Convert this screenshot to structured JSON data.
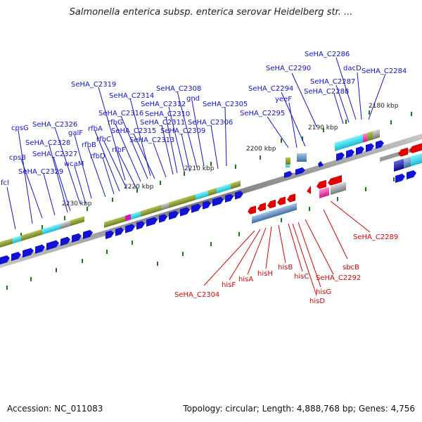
{
  "title": "Salmonella enterica subsp. enterica serovar Heidelberg str. ...",
  "accession": "Accession: NC_011083",
  "summary": "Topology: circular; Length: 4,888,768 bp; Genes: 4,756",
  "scale_labels": [
    "2180 kbp",
    "2190 kbp",
    "2200 kbp",
    "2210 kbp",
    "2220 kbp",
    "2230 kbp"
  ],
  "forward_genes": [
    "SeHA_C2286",
    "dacD",
    "SeHA_C2284",
    "SeHA_C2290",
    "SeHA_C2287",
    "SeHA_C2288",
    "SeHA_C2294",
    "yeeF",
    "SeHA_C2295",
    "SeHA_C2319",
    "SeHA_C2308",
    "SeHA_C2314",
    "gnd",
    "SeHA_C2312",
    "SeHA_C2305",
    "SeHA_C2316",
    "SeHA_C2310",
    "rfbG",
    "SeHA_C2311",
    "SeHA_C2306",
    "SeHA_C2315",
    "SeHA_C2309",
    "rfbA",
    "SeHA_C2313",
    "rfbC",
    "rfbF",
    "SeHA_C2326",
    "galF",
    "rfbB",
    "rfbD",
    "cpsG",
    "SeHA_C2328",
    "SeHA_C2327",
    "wcaM",
    "cpsB",
    "SeHA_C2329",
    "fcl"
  ],
  "reverse_genes": [
    "SeHA_C2289",
    "sbcB",
    "SeHA_C2292",
    "hisG",
    "hisD",
    "hisC",
    "hisB",
    "hisH",
    "hisA",
    "hisF",
    "SeHA_C2304"
  ],
  "colors": {
    "forward": "#1010d0",
    "reverse": "#e00000",
    "backbone": "#888888",
    "tick": "#1a7a1a"
  }
}
